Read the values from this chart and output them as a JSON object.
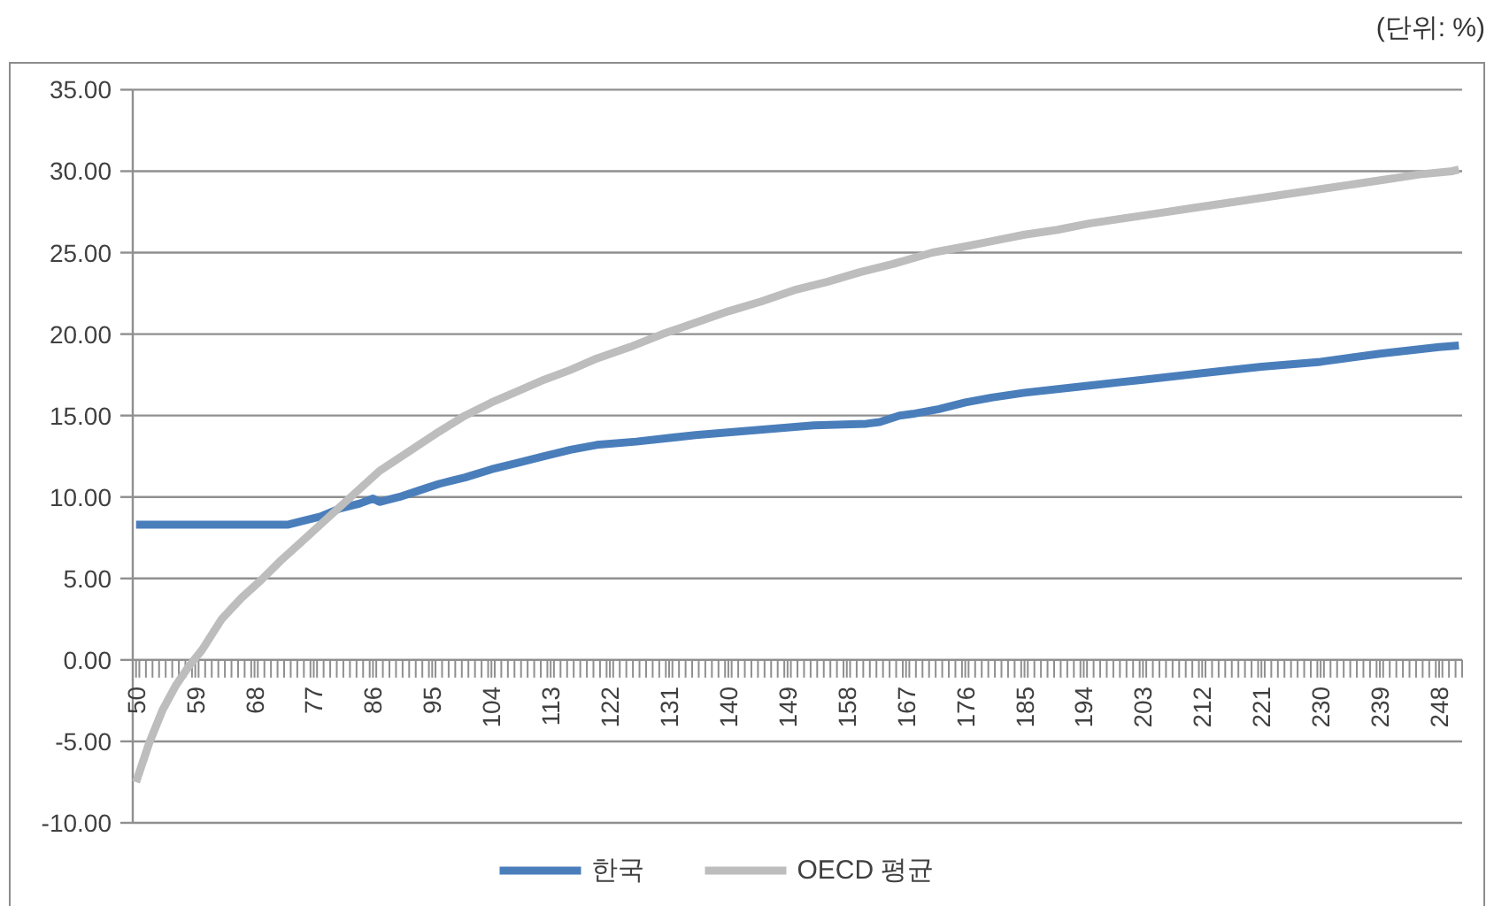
{
  "chart_data": {
    "type": "line",
    "annotations": [
      "(단위: %)"
    ],
    "xlim": [
      49.5,
      251.5
    ],
    "xticks": [
      {
        "value": 49.5,
        "label": null
      },
      50,
      {
        "value": 50.5,
        "label": null
      },
      {
        "value": 51.5,
        "label": null
      },
      {
        "value": 52.5,
        "label": null
      },
      {
        "value": 53.5,
        "label": null
      },
      {
        "value": 54.5,
        "label": null
      },
      {
        "value": 55.5,
        "label": null
      },
      {
        "value": 56.5,
        "label": null
      },
      {
        "value": 57.5,
        "label": null
      },
      {
        "value": 58.5,
        "label": null
      },
      59,
      {
        "value": 59.5,
        "label": null
      },
      {
        "value": 60.5,
        "label": null
      },
      {
        "value": 61.5,
        "label": null
      },
      {
        "value": 62.5,
        "label": null
      },
      {
        "value": 63.5,
        "label": null
      },
      {
        "value": 64.5,
        "label": null
      },
      {
        "value": 65.5,
        "label": null
      },
      {
        "value": 66.5,
        "label": null
      },
      {
        "value": 67.5,
        "label": null
      },
      68,
      {
        "value": 68.5,
        "label": null
      },
      {
        "value": 69.5,
        "label": null
      },
      {
        "value": 70.5,
        "label": null
      },
      {
        "value": 71.5,
        "label": null
      },
      {
        "value": 72.5,
        "label": null
      },
      {
        "value": 73.5,
        "label": null
      },
      {
        "value": 74.5,
        "label": null
      },
      {
        "value": 75.5,
        "label": null
      },
      {
        "value": 76.5,
        "label": null
      },
      77,
      {
        "value": 77.5,
        "label": null
      },
      {
        "value": 78.5,
        "label": null
      },
      {
        "value": 79.5,
        "label": null
      },
      {
        "value": 80.5,
        "label": null
      },
      {
        "value": 81.5,
        "label": null
      },
      {
        "value": 82.5,
        "label": null
      },
      {
        "value": 83.5,
        "label": null
      },
      {
        "value": 84.5,
        "label": null
      },
      {
        "value": 85.5,
        "label": null
      },
      86,
      {
        "value": 86.5,
        "label": null
      },
      {
        "value": 87.5,
        "label": null
      },
      {
        "value": 88.5,
        "label": null
      },
      {
        "value": 89.5,
        "label": null
      },
      {
        "value": 90.5,
        "label": null
      },
      {
        "value": 91.5,
        "label": null
      },
      {
        "value": 92.5,
        "label": null
      },
      {
        "value": 93.5,
        "label": null
      },
      {
        "value": 94.5,
        "label": null
      },
      95,
      {
        "value": 95.5,
        "label": null
      },
      {
        "value": 96.5,
        "label": null
      },
      {
        "value": 97.5,
        "label": null
      },
      {
        "value": 98.5,
        "label": null
      },
      {
        "value": 99.5,
        "label": null
      },
      {
        "value": 100.5,
        "label": null
      },
      {
        "value": 101.5,
        "label": null
      },
      {
        "value": 102.5,
        "label": null
      },
      {
        "value": 103.5,
        "label": null
      },
      104,
      {
        "value": 104.5,
        "label": null
      },
      {
        "value": 105.5,
        "label": null
      },
      {
        "value": 106.5,
        "label": null
      },
      {
        "value": 107.5,
        "label": null
      },
      {
        "value": 108.5,
        "label": null
      },
      {
        "value": 109.5,
        "label": null
      },
      {
        "value": 110.5,
        "label": null
      },
      {
        "value": 111.5,
        "label": null
      },
      {
        "value": 112.5,
        "label": null
      },
      113,
      {
        "value": 113.5,
        "label": null
      },
      {
        "value": 114.5,
        "label": null
      },
      {
        "value": 115.5,
        "label": null
      },
      {
        "value": 116.5,
        "label": null
      },
      {
        "value": 117.5,
        "label": null
      },
      {
        "value": 118.5,
        "label": null
      },
      {
        "value": 119.5,
        "label": null
      },
      {
        "value": 120.5,
        "label": null
      },
      {
        "value": 121.5,
        "label": null
      },
      122,
      {
        "value": 122.5,
        "label": null
      },
      {
        "value": 123.5,
        "label": null
      },
      {
        "value": 124.5,
        "label": null
      },
      {
        "value": 125.5,
        "label": null
      },
      {
        "value": 126.5,
        "label": null
      },
      {
        "value": 127.5,
        "label": null
      },
      {
        "value": 128.5,
        "label": null
      },
      {
        "value": 129.5,
        "label": null
      },
      {
        "value": 130.5,
        "label": null
      },
      131,
      {
        "value": 131.5,
        "label": null
      },
      {
        "value": 132.5,
        "label": null
      },
      {
        "value": 133.5,
        "label": null
      },
      {
        "value": 134.5,
        "label": null
      },
      {
        "value": 135.5,
        "label": null
      },
      {
        "value": 136.5,
        "label": null
      },
      {
        "value": 137.5,
        "label": null
      },
      {
        "value": 138.5,
        "label": null
      },
      {
        "value": 139.5,
        "label": null
      },
      140,
      {
        "value": 140.5,
        "label": null
      },
      {
        "value": 141.5,
        "label": null
      },
      {
        "value": 142.5,
        "label": null
      },
      {
        "value": 143.5,
        "label": null
      },
      {
        "value": 144.5,
        "label": null
      },
      {
        "value": 145.5,
        "label": null
      },
      {
        "value": 146.5,
        "label": null
      },
      {
        "value": 147.5,
        "label": null
      },
      {
        "value": 148.5,
        "label": null
      },
      149,
      {
        "value": 149.5,
        "label": null
      },
      {
        "value": 150.5,
        "label": null
      },
      {
        "value": 151.5,
        "label": null
      },
      {
        "value": 152.5,
        "label": null
      },
      {
        "value": 153.5,
        "label": null
      },
      {
        "value": 154.5,
        "label": null
      },
      {
        "value": 155.5,
        "label": null
      },
      {
        "value": 156.5,
        "label": null
      },
      {
        "value": 157.5,
        "label": null
      },
      158,
      {
        "value": 158.5,
        "label": null
      },
      {
        "value": 159.5,
        "label": null
      },
      {
        "value": 160.5,
        "label": null
      },
      {
        "value": 161.5,
        "label": null
      },
      {
        "value": 162.5,
        "label": null
      },
      {
        "value": 163.5,
        "label": null
      },
      {
        "value": 164.5,
        "label": null
      },
      {
        "value": 165.5,
        "label": null
      },
      {
        "value": 166.5,
        "label": null
      },
      167,
      {
        "value": 167.5,
        "label": null
      },
      {
        "value": 168.5,
        "label": null
      },
      {
        "value": 169.5,
        "label": null
      },
      {
        "value": 170.5,
        "label": null
      },
      {
        "value": 171.5,
        "label": null
      },
      {
        "value": 172.5,
        "label": null
      },
      {
        "value": 173.5,
        "label": null
      },
      {
        "value": 174.5,
        "label": null
      },
      {
        "value": 175.5,
        "label": null
      },
      176,
      {
        "value": 176.5,
        "label": null
      },
      {
        "value": 177.5,
        "label": null
      },
      {
        "value": 178.5,
        "label": null
      },
      {
        "value": 179.5,
        "label": null
      },
      {
        "value": 180.5,
        "label": null
      },
      {
        "value": 181.5,
        "label": null
      },
      {
        "value": 182.5,
        "label": null
      },
      {
        "value": 183.5,
        "label": null
      },
      {
        "value": 184.5,
        "label": null
      },
      185,
      {
        "value": 185.5,
        "label": null
      },
      {
        "value": 186.5,
        "label": null
      },
      {
        "value": 187.5,
        "label": null
      },
      {
        "value": 188.5,
        "label": null
      },
      {
        "value": 189.5,
        "label": null
      },
      {
        "value": 190.5,
        "label": null
      },
      {
        "value": 191.5,
        "label": null
      },
      {
        "value": 192.5,
        "label": null
      },
      {
        "value": 193.5,
        "label": null
      },
      194,
      {
        "value": 194.5,
        "label": null
      },
      {
        "value": 195.5,
        "label": null
      },
      {
        "value": 196.5,
        "label": null
      },
      {
        "value": 197.5,
        "label": null
      },
      {
        "value": 198.5,
        "label": null
      },
      {
        "value": 199.5,
        "label": null
      },
      {
        "value": 200.5,
        "label": null
      },
      {
        "value": 201.5,
        "label": null
      },
      {
        "value": 202.5,
        "label": null
      },
      203,
      {
        "value": 203.5,
        "label": null
      },
      {
        "value": 204.5,
        "label": null
      },
      {
        "value": 205.5,
        "label": null
      },
      {
        "value": 206.5,
        "label": null
      },
      {
        "value": 207.5,
        "label": null
      },
      {
        "value": 208.5,
        "label": null
      },
      {
        "value": 209.5,
        "label": null
      },
      {
        "value": 210.5,
        "label": null
      },
      {
        "value": 211.5,
        "label": null
      },
      212,
      {
        "value": 212.5,
        "label": null
      },
      {
        "value": 213.5,
        "label": null
      },
      {
        "value": 214.5,
        "label": null
      },
      {
        "value": 215.5,
        "label": null
      },
      {
        "value": 216.5,
        "label": null
      },
      {
        "value": 217.5,
        "label": null
      },
      {
        "value": 218.5,
        "label": null
      },
      {
        "value": 219.5,
        "label": null
      },
      {
        "value": 220.5,
        "label": null
      },
      221,
      {
        "value": 221.5,
        "label": null
      },
      {
        "value": 222.5,
        "label": null
      },
      {
        "value": 223.5,
        "label": null
      },
      {
        "value": 224.5,
        "label": null
      },
      {
        "value": 225.5,
        "label": null
      },
      {
        "value": 226.5,
        "label": null
      },
      {
        "value": 227.5,
        "label": null
      },
      {
        "value": 228.5,
        "label": null
      },
      {
        "value": 229.5,
        "label": null
      },
      230,
      {
        "value": 230.5,
        "label": null
      },
      {
        "value": 231.5,
        "label": null
      },
      {
        "value": 232.5,
        "label": null
      },
      {
        "value": 233.5,
        "label": null
      },
      {
        "value": 234.5,
        "label": null
      },
      {
        "value": 235.5,
        "label": null
      },
      {
        "value": 236.5,
        "label": null
      },
      {
        "value": 237.5,
        "label": null
      },
      {
        "value": 238.5,
        "label": null
      },
      239,
      {
        "value": 239.5,
        "label": null
      },
      {
        "value": 240.5,
        "label": null
      },
      {
        "value": 241.5,
        "label": null
      },
      {
        "value": 242.5,
        "label": null
      },
      {
        "value": 243.5,
        "label": null
      },
      {
        "value": 244.5,
        "label": null
      },
      {
        "value": 245.5,
        "label": null
      },
      {
        "value": 246.5,
        "label": null
      },
      {
        "value": 247.5,
        "label": null
      },
      248,
      {
        "value": 248.5,
        "label": null
      },
      {
        "value": 249.5,
        "label": null
      },
      {
        "value": 250.5,
        "label": null
      },
      {
        "value": 251.5,
        "label": null
      }
    ],
    "ylim": [
      -10,
      35
    ],
    "yticks": [
      {
        "value": -10,
        "label": "-10.00"
      },
      {
        "value": -5,
        "label": "-5.00"
      },
      {
        "value": 0,
        "label": "0.00"
      },
      {
        "value": 5,
        "label": "5.00"
      },
      {
        "value": 10,
        "label": "10.00"
      },
      {
        "value": 15,
        "label": "15.00"
      },
      {
        "value": 20,
        "label": "20.00"
      },
      {
        "value": 25,
        "label": "25.00"
      },
      {
        "value": 30,
        "label": "30.00"
      },
      {
        "value": 35,
        "label": "35.00"
      }
    ],
    "grid": "y",
    "legend": "bottom",
    "line_style": "solid",
    "series": [
      {
        "name": "한국",
        "color": "#4a7ebb",
        "x": [
          50,
          73,
          75,
          78,
          81,
          84,
          86,
          87,
          88,
          90,
          93,
          96,
          100,
          104,
          108,
          112,
          116,
          120,
          126,
          135,
          144,
          153,
          161,
          163,
          166,
          168,
          172,
          176,
          180,
          185,
          194,
          203,
          212,
          221,
          230,
          239,
          248,
          251
        ],
        "values": [
          8.3,
          8.3,
          8.5,
          8.8,
          9.3,
          9.6,
          9.9,
          9.7,
          9.8,
          10.0,
          10.4,
          10.8,
          11.2,
          11.7,
          12.1,
          12.5,
          12.9,
          13.2,
          13.4,
          13.8,
          14.1,
          14.4,
          14.5,
          14.6,
          15.0,
          15.1,
          15.4,
          15.8,
          16.1,
          16.4,
          16.8,
          17.2,
          17.6,
          18.0,
          18.3,
          18.8,
          19.2,
          19.3
        ]
      },
      {
        "name": "OECD 평균",
        "color": "#bdbdbd",
        "x": [
          50,
          52,
          54,
          56,
          58,
          60,
          63,
          66,
          69,
          72,
          75,
          78,
          81,
          84,
          87,
          90,
          93,
          96,
          100,
          104,
          108,
          112,
          116,
          120,
          125,
          130,
          135,
          140,
          145,
          150,
          155,
          160,
          165,
          171,
          175,
          180,
          185,
          190,
          195,
          200,
          205,
          210,
          215,
          220,
          225,
          230,
          235,
          240,
          245,
          250,
          251
        ],
        "values": [
          -7.5,
          -5.1,
          -3.1,
          -1.6,
          -0.4,
          0.6,
          2.5,
          3.8,
          4.9,
          6.1,
          7.2,
          8.3,
          9.4,
          10.5,
          11.6,
          12.4,
          13.2,
          14.0,
          15.0,
          15.8,
          16.5,
          17.2,
          17.8,
          18.5,
          19.2,
          20.0,
          20.7,
          21.4,
          22.0,
          22.7,
          23.2,
          23.8,
          24.3,
          25.0,
          25.3,
          25.7,
          26.1,
          26.4,
          26.8,
          27.1,
          27.4,
          27.7,
          28.0,
          28.3,
          28.6,
          28.9,
          29.2,
          29.5,
          29.8,
          30.0,
          30.1
        ]
      }
    ]
  }
}
